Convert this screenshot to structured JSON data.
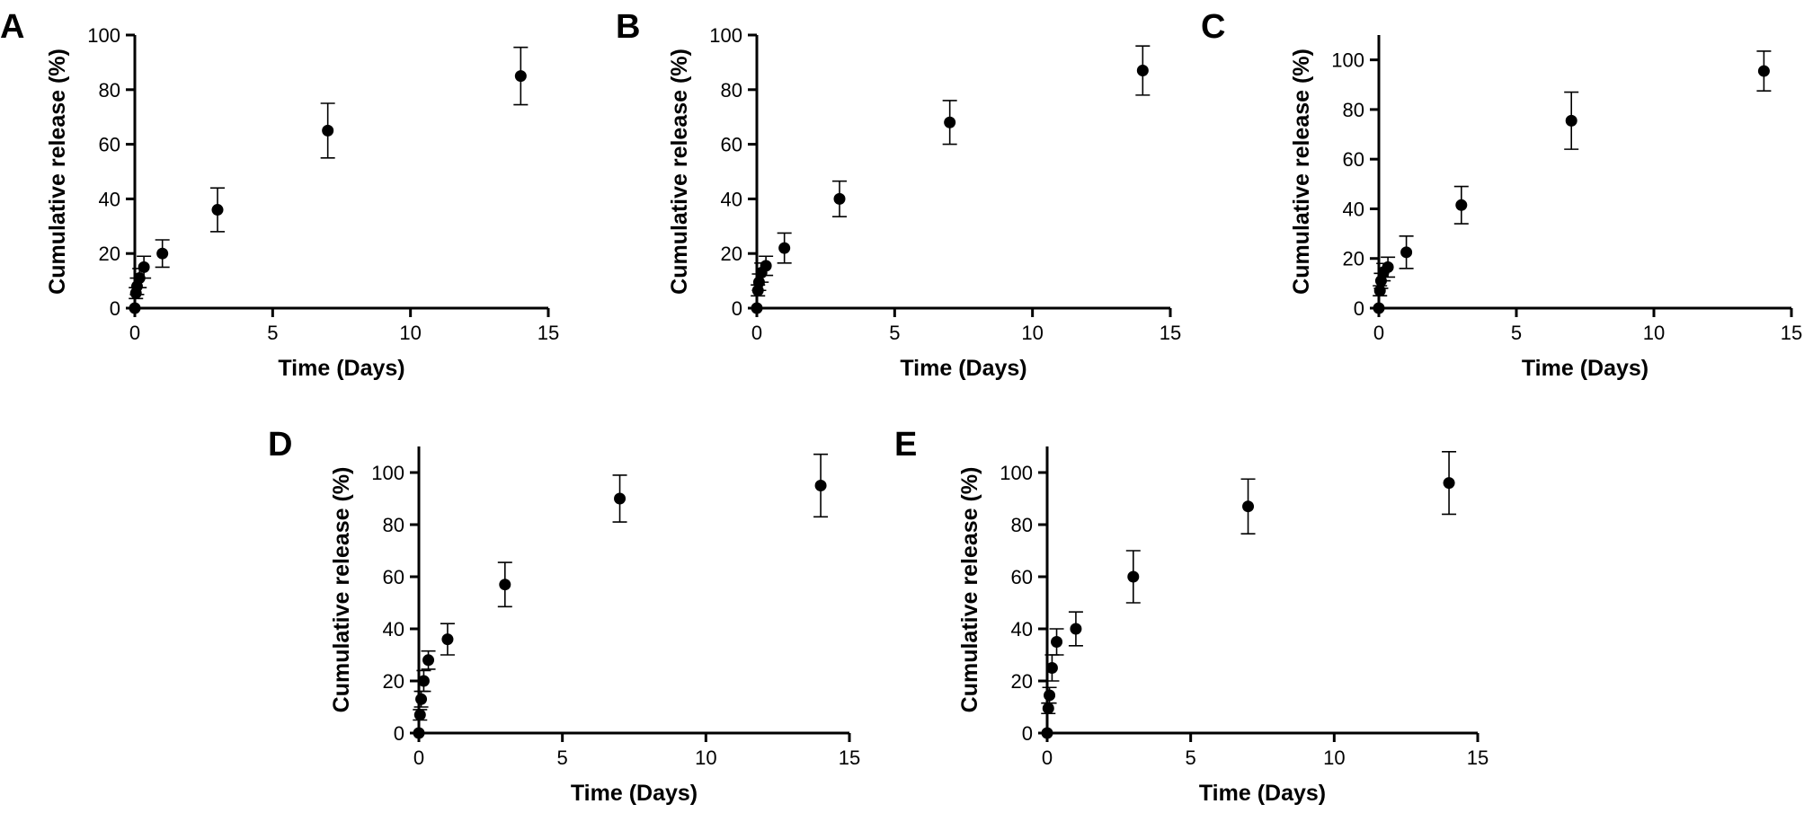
{
  "chart_data": [
    {
      "type": "scatter",
      "panel": "A",
      "xlabel": "Time (Days)",
      "ylabel": "Cumulative release (%)",
      "xlim": [
        0,
        15
      ],
      "ylim": [
        0,
        100
      ],
      "xticks": [
        "0",
        "5",
        "10",
        "15"
      ],
      "yticks": [
        "0",
        "20",
        "40",
        "60",
        "80",
        "100"
      ],
      "grid": false,
      "points": [
        {
          "x": 0,
          "y": 0,
          "err": 0
        },
        {
          "x": 0.04,
          "y": 5.5,
          "err": 2
        },
        {
          "x": 0.08,
          "y": 8,
          "err": 3
        },
        {
          "x": 0.17,
          "y": 11,
          "err": 3.5
        },
        {
          "x": 0.33,
          "y": 15,
          "err": 4
        },
        {
          "x": 1,
          "y": 20,
          "err": 5
        },
        {
          "x": 3,
          "y": 36,
          "err": 8
        },
        {
          "x": 7,
          "y": 65,
          "err": 10
        },
        {
          "x": 14,
          "y": 85,
          "err": 10.5
        }
      ]
    },
    {
      "type": "scatter",
      "panel": "B",
      "xlabel": "Time (Days)",
      "ylabel": "Cumulative release (%)",
      "xlim": [
        0,
        15
      ],
      "ylim": [
        0,
        100
      ],
      "xticks": [
        "0",
        "5",
        "10",
        "15"
      ],
      "yticks": [
        "0",
        "20",
        "40",
        "60",
        "80",
        "100"
      ],
      "grid": false,
      "points": [
        {
          "x": 0,
          "y": 0,
          "err": 0
        },
        {
          "x": 0.04,
          "y": 6.5,
          "err": 2
        },
        {
          "x": 0.08,
          "y": 9.5,
          "err": 3
        },
        {
          "x": 0.17,
          "y": 13,
          "err": 3.5
        },
        {
          "x": 0.33,
          "y": 15.5,
          "err": 3.5
        },
        {
          "x": 1,
          "y": 22,
          "err": 5.5
        },
        {
          "x": 3,
          "y": 40,
          "err": 6.5
        },
        {
          "x": 7,
          "y": 68,
          "err": 8
        },
        {
          "x": 14,
          "y": 87,
          "err": 9
        }
      ]
    },
    {
      "type": "scatter",
      "panel": "C",
      "xlabel": "Time (Days)",
      "ylabel": "Cumulative release (%)",
      "xlim": [
        0,
        15
      ],
      "ylim": [
        0,
        110
      ],
      "xticks": [
        "0",
        "5",
        "10",
        "15"
      ],
      "yticks": [
        "0",
        "20",
        "40",
        "60",
        "80",
        "100"
      ],
      "grid": false,
      "points": [
        {
          "x": 0,
          "y": 0,
          "err": 0
        },
        {
          "x": 0.04,
          "y": 7,
          "err": 2
        },
        {
          "x": 0.08,
          "y": 11,
          "err": 3
        },
        {
          "x": 0.17,
          "y": 14.5,
          "err": 3.5
        },
        {
          "x": 0.33,
          "y": 16.5,
          "err": 4
        },
        {
          "x": 1,
          "y": 22.5,
          "err": 6.5
        },
        {
          "x": 3,
          "y": 41.5,
          "err": 7.5
        },
        {
          "x": 7,
          "y": 75.5,
          "err": 11.5
        },
        {
          "x": 14,
          "y": 95.5,
          "err": 8
        }
      ]
    },
    {
      "type": "scatter",
      "panel": "D",
      "xlabel": "Time (Days)",
      "ylabel": "Cumulative release (%)",
      "xlim": [
        0,
        15
      ],
      "ylim": [
        0,
        110
      ],
      "xticks": [
        "0",
        "5",
        "10",
        "15"
      ],
      "yticks": [
        "0",
        "20",
        "40",
        "60",
        "80",
        "100"
      ],
      "grid": false,
      "points": [
        {
          "x": 0,
          "y": 0,
          "err": 0
        },
        {
          "x": 0.04,
          "y": 7,
          "err": 2
        },
        {
          "x": 0.08,
          "y": 13,
          "err": 3
        },
        {
          "x": 0.17,
          "y": 20,
          "err": 4
        },
        {
          "x": 0.33,
          "y": 28,
          "err": 3.5
        },
        {
          "x": 1,
          "y": 36,
          "err": 6
        },
        {
          "x": 3,
          "y": 57,
          "err": 8.5
        },
        {
          "x": 7,
          "y": 90,
          "err": 9
        },
        {
          "x": 14,
          "y": 95,
          "err": 12
        }
      ]
    },
    {
      "type": "scatter",
      "panel": "E",
      "xlabel": "Time (Days)",
      "ylabel": "Cumulative release (%)",
      "xlim": [
        0,
        15
      ],
      "ylim": [
        0,
        110
      ],
      "xticks": [
        "0",
        "5",
        "10",
        "15"
      ],
      "yticks": [
        "0",
        "20",
        "40",
        "60",
        "80",
        "100"
      ],
      "grid": false,
      "points": [
        {
          "x": 0,
          "y": 0,
          "err": 0
        },
        {
          "x": 0.04,
          "y": 9.5,
          "err": 2
        },
        {
          "x": 0.08,
          "y": 14.5,
          "err": 3
        },
        {
          "x": 0.17,
          "y": 25,
          "err": 5
        },
        {
          "x": 0.33,
          "y": 35,
          "err": 5
        },
        {
          "x": 1,
          "y": 40,
          "err": 6.5
        },
        {
          "x": 3,
          "y": 60,
          "err": 10
        },
        {
          "x": 7,
          "y": 87,
          "err": 10.5
        },
        {
          "x": 14,
          "y": 96,
          "err": 12
        }
      ]
    }
  ]
}
